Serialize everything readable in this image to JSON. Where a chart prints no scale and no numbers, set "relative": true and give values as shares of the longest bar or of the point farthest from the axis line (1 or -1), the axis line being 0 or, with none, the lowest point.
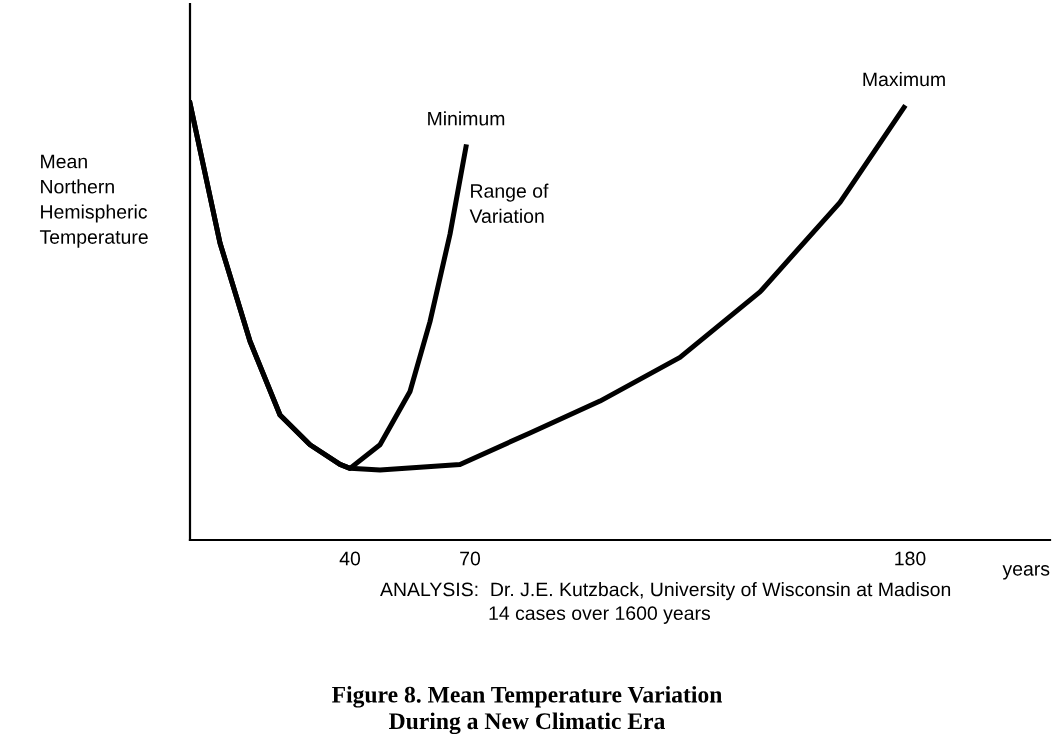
{
  "chart_data": {
    "type": "line",
    "relative": true,
    "title": "Figure 8. Mean Temperature Variation\nDuring a New Climatic Era",
    "ylabel": "Mean\nNorthern\nHemispheric\nTemperature",
    "xlabel": "years",
    "xlim": [
      0,
      215
    ],
    "xticks": [
      40,
      70,
      180
    ],
    "grid": false,
    "legend": false,
    "marker": "none",
    "line_style": "solid",
    "annotations": [
      "Range of\nVariation",
      "ANALYSIS:  Dr. J.E. Kutzback, University of Wisconsin at Madison\n                    14 cases over 1600 years"
    ],
    "series": [
      {
        "name": "Minimum",
        "color": "#000000",
        "x": [
          0,
          7.5,
          15,
          22.5,
          30,
          37.5,
          40,
          47.5,
          55,
          60,
          65,
          69
        ],
        "values": [
          1.0,
          0.68,
          0.455,
          0.286,
          0.218,
          0.173,
          0.164,
          0.218,
          0.34,
          0.5,
          0.7,
          0.9
        ]
      },
      {
        "name": "Maximum",
        "color": "#000000",
        "x": [
          0,
          7.5,
          15,
          22.5,
          30,
          37.5,
          40,
          47.5,
          67.5,
          85,
          102.5,
          122.5,
          142.5,
          162.5,
          178.5
        ],
        "values": [
          1.0,
          0.68,
          0.455,
          0.286,
          0.218,
          0.173,
          0.164,
          0.16,
          0.173,
          0.245,
          0.318,
          0.418,
          0.568,
          0.773,
          0.99
        ]
      }
    ]
  }
}
